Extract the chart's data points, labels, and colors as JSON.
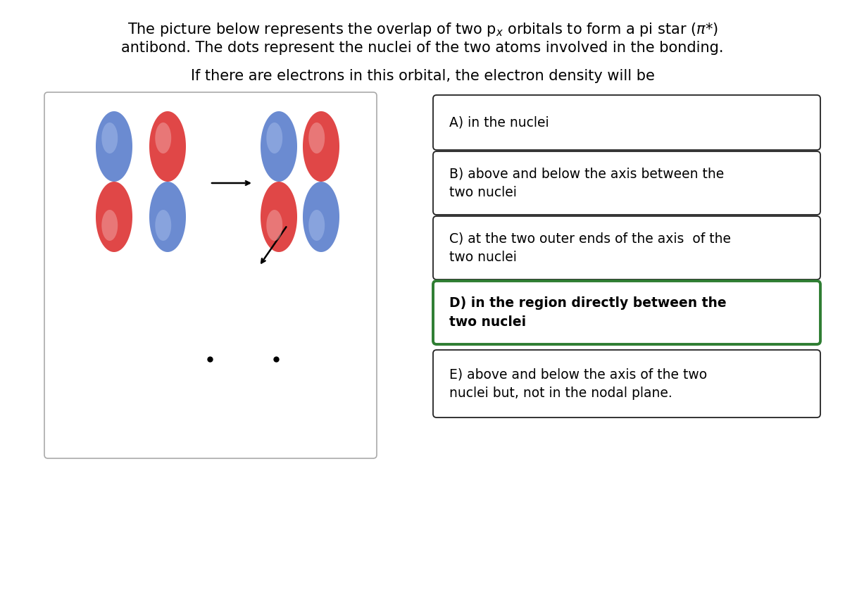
{
  "title_line1": "The picture below represents the overlap of two p",
  "title_sub": "x",
  "title_line1_end": " orbitals to form a pi star (π*)",
  "title_line2": "antibond. The dots represent the nuclei of the two atoms involved in the bonding.",
  "subtitle": "If there are electrons in this orbital, the electron density will be",
  "options": [
    {
      "label": "A) in the nuclei",
      "bold": false,
      "selected": false
    },
    {
      "label": "B) above and below the axis between the\ntwo nuclei",
      "bold": false,
      "selected": false
    },
    {
      "label": "C) at the two outer ends of the axis  of the\ntwo nuclei",
      "bold": false,
      "selected": false
    },
    {
      "label": "D) in the region directly between the\ntwo nuclei",
      "bold": true,
      "selected": true
    },
    {
      "label": "E) above and below the axis of the two\nnuclei but, not in the nodal plane.",
      "bold": false,
      "selected": false
    }
  ],
  "selected_color": "#2e7d32",
  "box_edge_color": "#333333",
  "background": "#ffffff",
  "blue": "#5b7fcc",
  "blue_light": "#a0b8e8",
  "red": "#dd3333",
  "red_light": "#f0a0a0"
}
